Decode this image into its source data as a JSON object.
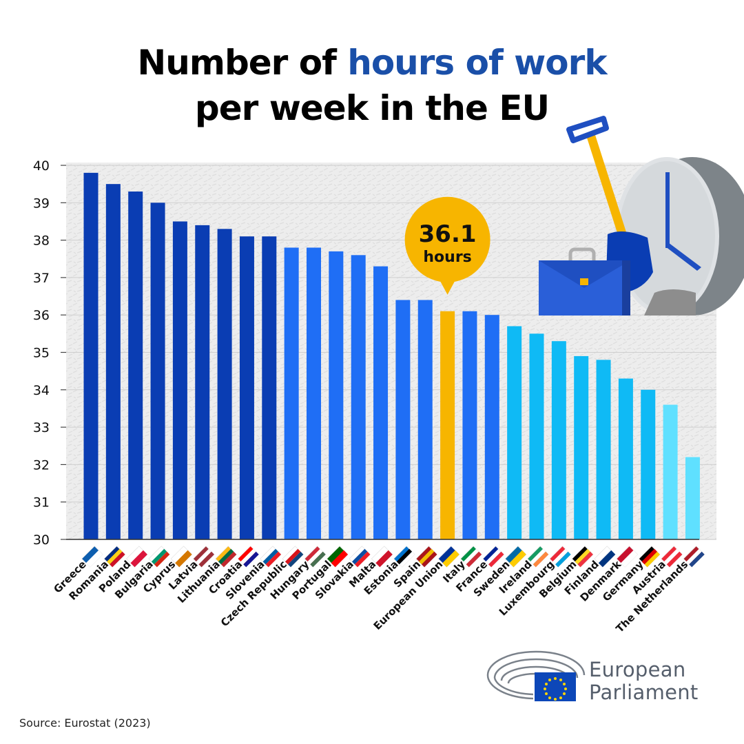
{
  "title": {
    "part1": "Number of ",
    "highlight": "hours of work",
    "line2": "per week in the EU"
  },
  "callout": {
    "value": "36.1",
    "unit": "hours"
  },
  "source": "Source: Eurostat (2023)",
  "logo": {
    "line1": "European",
    "line2": "Parliament"
  },
  "colors": {
    "dark_blue": "#0a3db3",
    "mid_blue": "#1f6ef5",
    "light_blue": "#0fbaf5",
    "pale_blue": "#5fe0ff",
    "highlight": "#f7b500",
    "title_accent": "#1a4fa8"
  },
  "chart_data": {
    "type": "bar",
    "categories": [
      "Greece",
      "Romania",
      "Poland",
      "Bulgaria",
      "Cyprus",
      "Latvia",
      "Lithuania",
      "Croatia",
      "Slovenia",
      "Czech Republic",
      "Hungary",
      "Portugal",
      "Slovakia",
      "Malta",
      "Estonia",
      "Spain",
      "European Union",
      "Italy",
      "France",
      "Sweden",
      "Ireland",
      "Luxembourg",
      "Belgium",
      "Finland",
      "Denmark",
      "Germany",
      "Austria",
      "The Netherlands"
    ],
    "values": [
      39.8,
      39.5,
      39.3,
      39.0,
      38.5,
      38.4,
      38.3,
      38.1,
      38.1,
      37.8,
      37.8,
      37.7,
      37.6,
      37.3,
      36.4,
      36.4,
      36.1,
      36.1,
      36.0,
      35.7,
      35.5,
      35.3,
      34.9,
      34.8,
      34.3,
      34.0,
      33.6,
      32.2
    ],
    "color_groups": [
      "dark_blue",
      "dark_blue",
      "dark_blue",
      "dark_blue",
      "dark_blue",
      "dark_blue",
      "dark_blue",
      "dark_blue",
      "dark_blue",
      "mid_blue",
      "mid_blue",
      "mid_blue",
      "mid_blue",
      "mid_blue",
      "mid_blue",
      "mid_blue",
      "highlight",
      "mid_blue",
      "mid_blue",
      "light_blue",
      "light_blue",
      "light_blue",
      "light_blue",
      "light_blue",
      "light_blue",
      "light_blue",
      "pale_blue",
      "pale_blue"
    ],
    "highlight_category": "European Union",
    "ylim": [
      30,
      40
    ],
    "yticks": [
      30,
      31,
      32,
      33,
      34,
      35,
      36,
      37,
      38,
      39,
      40
    ],
    "grid": true,
    "title": "Number of hours of work per week in the EU",
    "xlabel": "",
    "ylabel": ""
  }
}
